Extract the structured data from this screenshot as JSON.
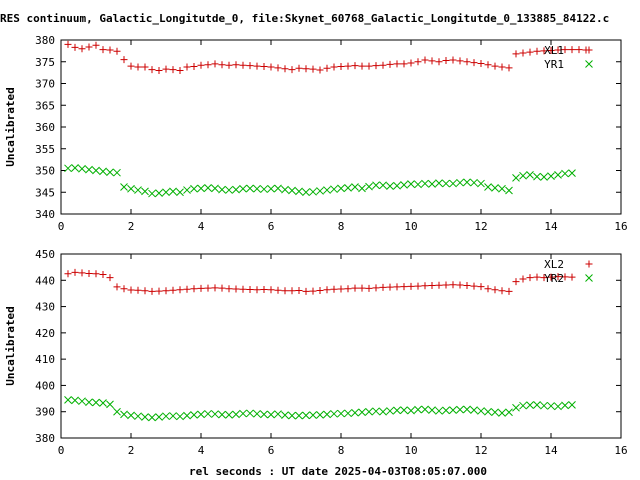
{
  "title": "RES continuum, Galactic_Longitutde_0, file:Skynet_60768_Galactic_Longitutde_0_133885_84122.c",
  "xlabel": "rel seconds : UT date 2025-04-03T08:05:07.000",
  "chart_data": [
    {
      "type": "scatter",
      "ylabel": "Uncalibrated",
      "xlim": [
        0,
        16
      ],
      "ylim": [
        340,
        380
      ],
      "xticks": [
        0,
        2,
        4,
        6,
        8,
        10,
        12,
        14,
        16
      ],
      "yticks": [
        340,
        345,
        350,
        355,
        360,
        365,
        370,
        375,
        380
      ],
      "grid": false,
      "legend": "top-right",
      "series": [
        {
          "name": "XL1",
          "marker": "plus",
          "color": "#cc0000",
          "x": [
            0.2,
            0.4,
            0.6,
            0.8,
            1.0,
            1.2,
            1.4,
            1.6,
            1.8,
            2.0,
            2.2,
            2.4,
            2.6,
            2.8,
            3.0,
            3.2,
            3.4,
            3.6,
            3.8,
            4.0,
            4.2,
            4.4,
            4.6,
            4.8,
            5.0,
            5.2,
            5.4,
            5.6,
            5.8,
            6.0,
            6.2,
            6.4,
            6.6,
            6.8,
            7.0,
            7.2,
            7.4,
            7.6,
            7.8,
            8.0,
            8.2,
            8.4,
            8.6,
            8.8,
            9.0,
            9.2,
            9.4,
            9.6,
            9.8,
            10.0,
            10.2,
            10.4,
            10.6,
            10.8,
            11.0,
            11.2,
            11.4,
            11.6,
            11.8,
            12.0,
            12.2,
            12.4,
            12.6,
            12.8,
            13.0,
            13.2,
            13.4,
            13.6,
            13.8,
            14.0,
            14.2,
            14.4,
            14.6,
            14.8,
            15.0
          ],
          "y": [
            379.0,
            378.3,
            378.0,
            378.4,
            378.8,
            377.8,
            377.7,
            377.4,
            375.5,
            374.0,
            373.8,
            373.8,
            373.2,
            373.0,
            373.3,
            373.2,
            373.0,
            373.8,
            373.9,
            374.2,
            374.3,
            374.5,
            374.3,
            374.2,
            374.3,
            374.2,
            374.1,
            374.0,
            373.9,
            373.8,
            373.6,
            373.4,
            373.2,
            373.5,
            373.4,
            373.3,
            373.1,
            373.5,
            373.8,
            373.9,
            374.0,
            374.1,
            374.0,
            374.0,
            374.1,
            374.2,
            374.4,
            374.5,
            374.5,
            374.7,
            375.0,
            375.4,
            375.2,
            375.0,
            375.3,
            375.4,
            375.2,
            375.0,
            374.8,
            374.6,
            374.3,
            374.0,
            373.8,
            373.6,
            376.8,
            377.0,
            377.2,
            377.4,
            377.5,
            377.6,
            377.7,
            377.8,
            377.8,
            377.8,
            377.7
          ]
        },
        {
          "name": "YR1",
          "marker": "cross",
          "color": "#00b000",
          "x": [
            0.2,
            0.4,
            0.6,
            0.8,
            1.0,
            1.2,
            1.4,
            1.6,
            1.8,
            2.0,
            2.2,
            2.4,
            2.6,
            2.8,
            3.0,
            3.2,
            3.4,
            3.6,
            3.8,
            4.0,
            4.2,
            4.4,
            4.6,
            4.8,
            5.0,
            5.2,
            5.4,
            5.6,
            5.8,
            6.0,
            6.2,
            6.4,
            6.6,
            6.8,
            7.0,
            7.2,
            7.4,
            7.6,
            7.8,
            8.0,
            8.2,
            8.4,
            8.6,
            8.8,
            9.0,
            9.2,
            9.4,
            9.6,
            9.8,
            10.0,
            10.2,
            10.4,
            10.6,
            10.8,
            11.0,
            11.2,
            11.4,
            11.6,
            11.8,
            12.0,
            12.2,
            12.4,
            12.6,
            12.8,
            13.0,
            13.2,
            13.4,
            13.6,
            13.8,
            14.0,
            14.2,
            14.4,
            14.6
          ],
          "y": [
            350.5,
            350.6,
            350.4,
            350.2,
            350.0,
            349.8,
            349.6,
            349.5,
            346.2,
            345.8,
            345.5,
            345.2,
            344.7,
            344.8,
            345.0,
            345.2,
            345.0,
            345.5,
            345.8,
            345.9,
            346.0,
            345.9,
            345.6,
            345.5,
            345.6,
            345.8,
            345.9,
            345.8,
            345.7,
            345.8,
            345.9,
            345.6,
            345.4,
            345.2,
            345.0,
            345.1,
            345.3,
            345.5,
            345.7,
            345.9,
            346.0,
            346.2,
            345.9,
            346.3,
            346.6,
            346.6,
            346.4,
            346.5,
            346.7,
            346.9,
            346.8,
            347.0,
            346.9,
            347.1,
            347.0,
            347.0,
            347.2,
            347.3,
            347.2,
            347.0,
            346.2,
            346.0,
            345.8,
            345.4,
            348.3,
            348.8,
            349.0,
            348.6,
            348.5,
            348.7,
            349.0,
            349.3,
            349.4
          ]
        }
      ]
    },
    {
      "type": "scatter",
      "ylabel": "Uncalibrated",
      "xlim": [
        0,
        16
      ],
      "ylim": [
        380,
        450
      ],
      "xticks": [
        0,
        2,
        4,
        6,
        8,
        10,
        12,
        14,
        16
      ],
      "yticks": [
        380,
        390,
        400,
        410,
        420,
        430,
        440,
        450
      ],
      "grid": false,
      "legend": "top-right",
      "series": [
        {
          "name": "XL2",
          "marker": "plus",
          "color": "#cc0000",
          "x": [
            0.2,
            0.4,
            0.6,
            0.8,
            1.0,
            1.2,
            1.4,
            1.6,
            1.8,
            2.0,
            2.2,
            2.4,
            2.6,
            2.8,
            3.0,
            3.2,
            3.4,
            3.6,
            3.8,
            4.0,
            4.2,
            4.4,
            4.6,
            4.8,
            5.0,
            5.2,
            5.4,
            5.6,
            5.8,
            6.0,
            6.2,
            6.4,
            6.6,
            6.8,
            7.0,
            7.2,
            7.4,
            7.6,
            7.8,
            8.0,
            8.2,
            8.4,
            8.6,
            8.8,
            9.0,
            9.2,
            9.4,
            9.6,
            9.8,
            10.0,
            10.2,
            10.4,
            10.6,
            10.8,
            11.0,
            11.2,
            11.4,
            11.6,
            11.8,
            12.0,
            12.2,
            12.4,
            12.6,
            12.8,
            13.0,
            13.2,
            13.4,
            13.6,
            13.8,
            14.0,
            14.2,
            14.4,
            14.6
          ],
          "y": [
            442.5,
            443.0,
            442.8,
            442.6,
            442.5,
            442.2,
            441.0,
            437.5,
            436.8,
            436.3,
            436.2,
            436.0,
            435.8,
            435.9,
            436.0,
            436.2,
            436.4,
            436.6,
            436.8,
            436.9,
            437.0,
            437.1,
            437.0,
            436.8,
            436.7,
            436.6,
            436.5,
            436.4,
            436.5,
            436.4,
            436.2,
            436.0,
            436.0,
            436.1,
            435.8,
            435.9,
            436.1,
            436.4,
            436.6,
            436.7,
            436.8,
            437.0,
            437.0,
            436.9,
            437.1,
            437.3,
            437.4,
            437.5,
            437.6,
            437.7,
            437.8,
            437.9,
            438.0,
            438.1,
            438.2,
            438.3,
            438.2,
            438.0,
            437.8,
            437.6,
            436.8,
            436.4,
            436.0,
            435.8,
            439.5,
            440.5,
            441.0,
            441.2,
            441.0,
            441.2,
            441.4,
            441.3,
            441.2
          ]
        },
        {
          "name": "YR2",
          "marker": "cross",
          "color": "#00b000",
          "x": [
            0.2,
            0.4,
            0.6,
            0.8,
            1.0,
            1.2,
            1.4,
            1.6,
            1.8,
            2.0,
            2.2,
            2.4,
            2.6,
            2.8,
            3.0,
            3.2,
            3.4,
            3.6,
            3.8,
            4.0,
            4.2,
            4.4,
            4.6,
            4.8,
            5.0,
            5.2,
            5.4,
            5.6,
            5.8,
            6.0,
            6.2,
            6.4,
            6.6,
            6.8,
            7.0,
            7.2,
            7.4,
            7.6,
            7.8,
            8.0,
            8.2,
            8.4,
            8.6,
            8.8,
            9.0,
            9.2,
            9.4,
            9.6,
            9.8,
            10.0,
            10.2,
            10.4,
            10.6,
            10.8,
            11.0,
            11.2,
            11.4,
            11.6,
            11.8,
            12.0,
            12.2,
            12.4,
            12.6,
            12.8,
            13.0,
            13.2,
            13.4,
            13.6,
            13.8,
            14.0,
            14.2,
            14.4,
            14.6
          ],
          "y": [
            394.5,
            394.3,
            394.0,
            393.6,
            393.5,
            393.3,
            392.8,
            390.0,
            389.0,
            388.6,
            388.3,
            388.0,
            387.8,
            388.0,
            388.3,
            388.4,
            388.2,
            388.5,
            388.8,
            389.0,
            389.2,
            389.1,
            388.9,
            388.8,
            389.0,
            389.3,
            389.4,
            389.2,
            389.0,
            388.9,
            389.1,
            388.7,
            388.5,
            388.5,
            388.6,
            388.7,
            388.8,
            389.0,
            389.2,
            389.3,
            389.4,
            389.6,
            389.8,
            390.0,
            390.2,
            390.0,
            390.3,
            390.5,
            390.6,
            390.4,
            390.8,
            390.9,
            390.6,
            390.3,
            390.5,
            390.6,
            390.8,
            390.9,
            390.6,
            390.3,
            390.0,
            389.8,
            389.5,
            389.8,
            391.5,
            392.3,
            392.5,
            392.6,
            392.3,
            392.2,
            392.0,
            392.4,
            392.6
          ]
        }
      ]
    }
  ]
}
